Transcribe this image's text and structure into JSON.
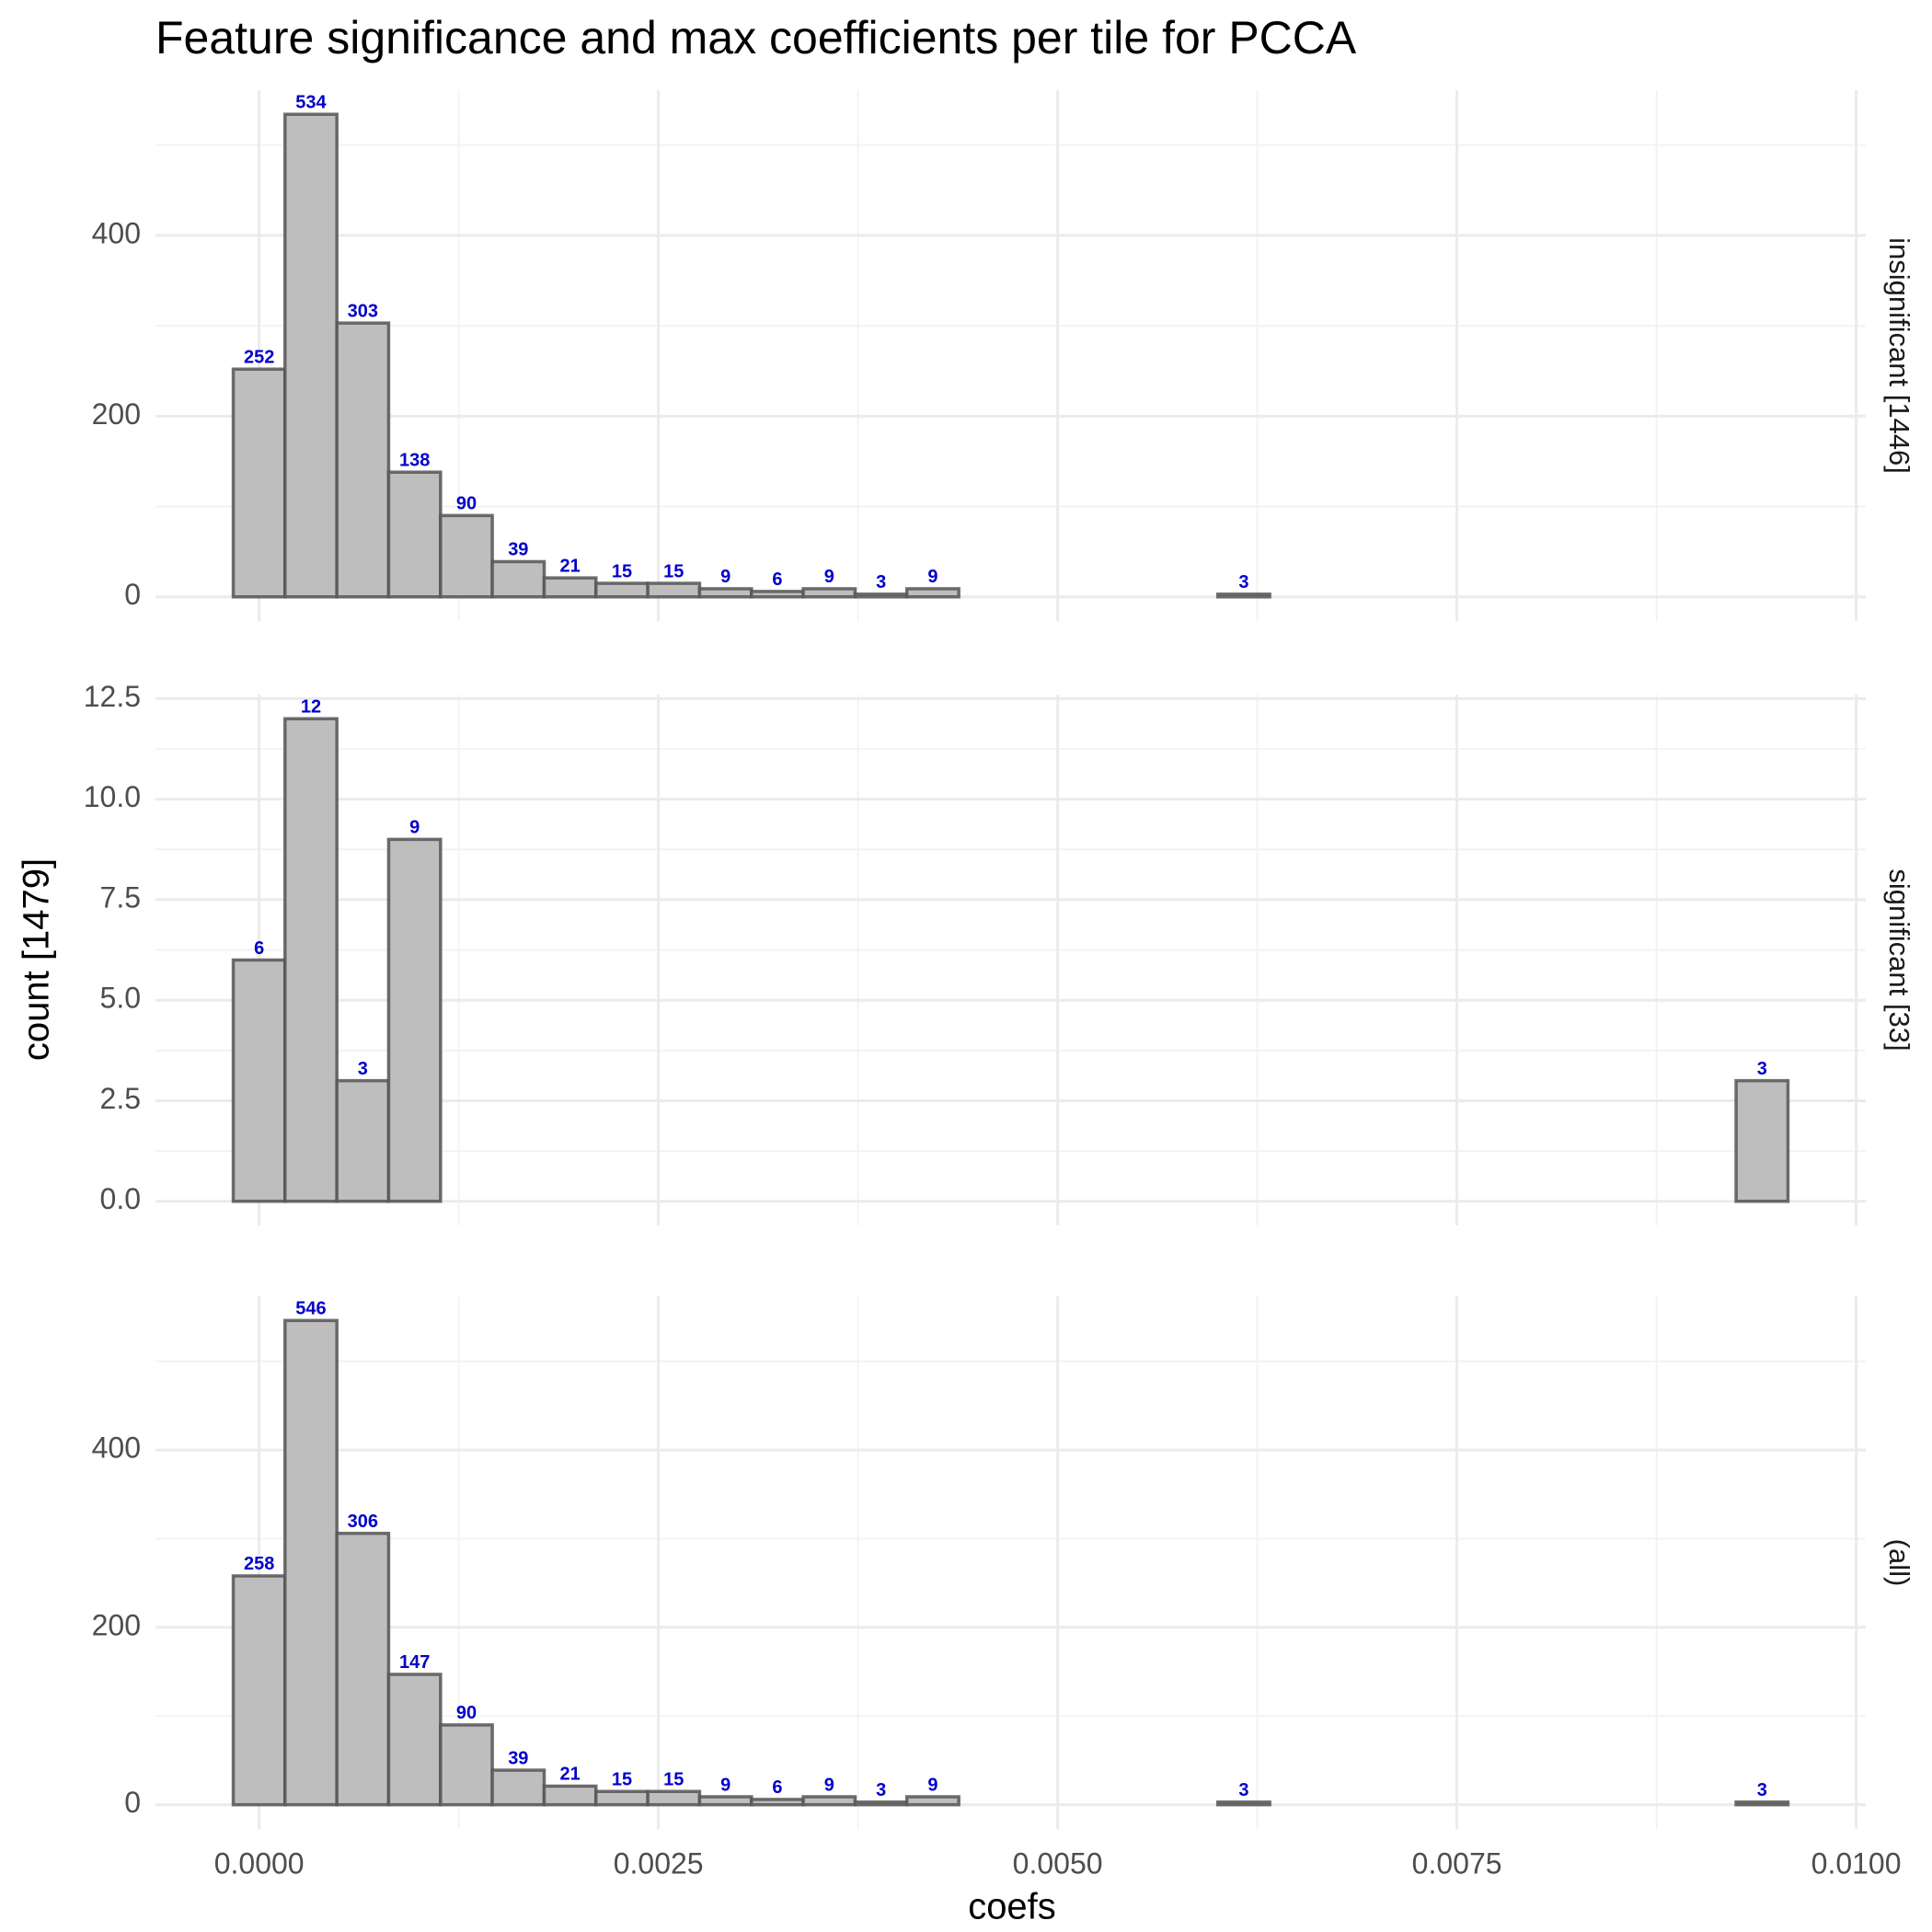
{
  "title": "Feature significance and max coefficients per tile for PCCA",
  "x_label": "coefs",
  "y_label": "count [1479]",
  "chart_data": [
    {
      "type": "histogram",
      "label": "insignificant [1446]",
      "bins": [
        -0.000162,
        0.000162,
        0.000487,
        0.000811,
        0.001136,
        0.00146,
        0.001785,
        0.002109,
        0.002434,
        0.002758,
        0.003083,
        0.003407,
        0.003732,
        0.004056,
        0.004381,
        0.004705,
        0.00503,
        0.005354,
        0.005679,
        0.006003,
        0.006328,
        0.006652,
        0.006977,
        0.007301,
        0.007626,
        0.00795,
        0.008275,
        0.008599,
        0.008924,
        0.009248,
        0.009573
      ],
      "values": [
        252,
        534,
        303,
        138,
        90,
        39,
        21,
        15,
        15,
        9,
        6,
        9,
        3,
        9,
        0,
        0,
        0,
        0,
        0,
        3,
        0,
        0,
        0,
        0,
        0,
        0,
        0,
        0,
        0,
        0
      ],
      "color": "#bebebe",
      "label_color": "#0000cc",
      "xlim": [
        -0.000649,
        0.01006
      ],
      "xticks": [
        {
          "value": 0,
          "label": "0.0000"
        },
        {
          "value": 0.0025,
          "label": "0.0025"
        },
        {
          "value": 0.005,
          "label": "0.0050"
        },
        {
          "value": 0.0075,
          "label": "0.0075"
        },
        {
          "value": 0.01,
          "label": "0.0100"
        }
      ],
      "ylim": [
        -26.7,
        560.7
      ],
      "yticks": [
        0,
        200,
        400
      ],
      "grid": true
    },
    {
      "type": "histogram",
      "label": "significant [33]",
      "bins": [
        -0.000162,
        0.000162,
        0.000487,
        0.000811,
        0.001136,
        0.00146,
        0.001785,
        0.002109,
        0.002434,
        0.002758,
        0.003083,
        0.003407,
        0.003732,
        0.004056,
        0.004381,
        0.004705,
        0.00503,
        0.005354,
        0.005679,
        0.006003,
        0.006328,
        0.006652,
        0.006977,
        0.007301,
        0.007626,
        0.00795,
        0.008275,
        0.008599,
        0.008924,
        0.009248,
        0.009573
      ],
      "values": [
        6,
        12,
        3,
        9,
        0,
        0,
        0,
        0,
        0,
        0,
        0,
        0,
        0,
        0,
        0,
        0,
        0,
        0,
        0,
        0,
        0,
        0,
        0,
        0,
        0,
        0,
        0,
        0,
        0,
        3
      ],
      "color": "#bebebe",
      "label_color": "#0000cc",
      "xlim": [
        -0.000649,
        0.01006
      ],
      "xticks": [
        {
          "value": 0,
          "label": "0.0000"
        },
        {
          "value": 0.0025,
          "label": "0.0025"
        },
        {
          "value": 0.005,
          "label": "0.0050"
        },
        {
          "value": 0.0075,
          "label": "0.0075"
        },
        {
          "value": 0.01,
          "label": "0.0100"
        }
      ],
      "ylim": [
        -0.6,
        12.6
      ],
      "yticks": [
        {
          "value": 0,
          "label": "0.0"
        },
        2.5,
        {
          "value": 5,
          "label": "5.0"
        },
        7.5,
        {
          "value": 10,
          "label": "10.0"
        },
        12.5
      ],
      "grid": true
    },
    {
      "type": "histogram",
      "label": "(all)",
      "bins": [
        -0.000162,
        0.000162,
        0.000487,
        0.000811,
        0.001136,
        0.00146,
        0.001785,
        0.002109,
        0.002434,
        0.002758,
        0.003083,
        0.003407,
        0.003732,
        0.004056,
        0.004381,
        0.004705,
        0.00503,
        0.005354,
        0.005679,
        0.006003,
        0.006328,
        0.006652,
        0.006977,
        0.007301,
        0.007626,
        0.00795,
        0.008275,
        0.008599,
        0.008924,
        0.009248,
        0.009573
      ],
      "values": [
        258,
        546,
        306,
        147,
        90,
        39,
        21,
        15,
        15,
        9,
        6,
        9,
        3,
        9,
        0,
        0,
        0,
        0,
        0,
        3,
        0,
        0,
        0,
        0,
        0,
        0,
        0,
        0,
        0,
        3
      ],
      "color": "#bebebe",
      "label_color": "#0000cc",
      "xlim": [
        -0.000649,
        0.01006
      ],
      "xticks": [
        {
          "value": 0,
          "label": "0.0000"
        },
        {
          "value": 0.0025,
          "label": "0.0025"
        },
        {
          "value": 0.005,
          "label": "0.0050"
        },
        {
          "value": 0.0075,
          "label": "0.0075"
        },
        {
          "value": 0.01,
          "label": "0.0100"
        }
      ],
      "ylim": [
        -27.3,
        573.3
      ],
      "yticks": [
        0,
        200,
        400
      ],
      "grid": true
    }
  ]
}
